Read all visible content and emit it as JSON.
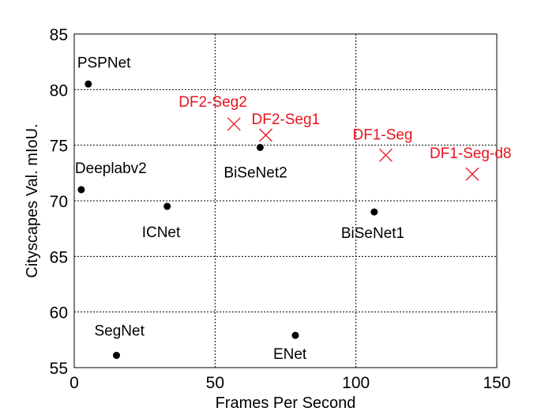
{
  "chart_data": {
    "type": "scatter",
    "xlabel": "Frames Per Second",
    "ylabel": "Cityscapes Val. mIoU.",
    "xlim": [
      0,
      150
    ],
    "ylim": [
      55,
      85
    ],
    "xticks": [
      "0",
      "50",
      "100",
      "150"
    ],
    "yticks": [
      "55",
      "60",
      "65",
      "70",
      "75",
      "80",
      "85"
    ],
    "grid": true,
    "colors": {
      "baseline": "#000000",
      "proposed": "#e8141e"
    },
    "points": [
      {
        "label": "PSPNet",
        "x": 5,
        "y": 80.5,
        "marker": "dot",
        "group": "baseline"
      },
      {
        "label": "Deeplabv2",
        "x": 2.5,
        "y": 71,
        "marker": "dot",
        "group": "baseline"
      },
      {
        "label": "ICNet",
        "x": 33,
        "y": 69.5,
        "marker": "dot",
        "group": "baseline"
      },
      {
        "label": "SegNet",
        "x": 15,
        "y": 56.1,
        "marker": "dot",
        "group": "baseline"
      },
      {
        "label": "ENet",
        "x": 78.5,
        "y": 57.9,
        "marker": "dot",
        "group": "baseline"
      },
      {
        "label": "BiSeNet2",
        "x": 66,
        "y": 74.8,
        "marker": "dot",
        "group": "baseline"
      },
      {
        "label": "BiSeNet1",
        "x": 106.5,
        "y": 69,
        "marker": "dot",
        "group": "baseline"
      },
      {
        "label": "DF2-Seg2",
        "x": 56.7,
        "y": 76.9,
        "marker": "x",
        "group": "proposed"
      },
      {
        "label": "DF2-Seg1",
        "x": 68,
        "y": 75.9,
        "marker": "x",
        "group": "proposed"
      },
      {
        "label": "DF1-Seg",
        "x": 110.6,
        "y": 74.1,
        "marker": "x",
        "group": "proposed"
      },
      {
        "label": "DF1-Seg-d8",
        "x": 141.3,
        "y": 72.4,
        "marker": "x",
        "group": "proposed"
      }
    ]
  }
}
